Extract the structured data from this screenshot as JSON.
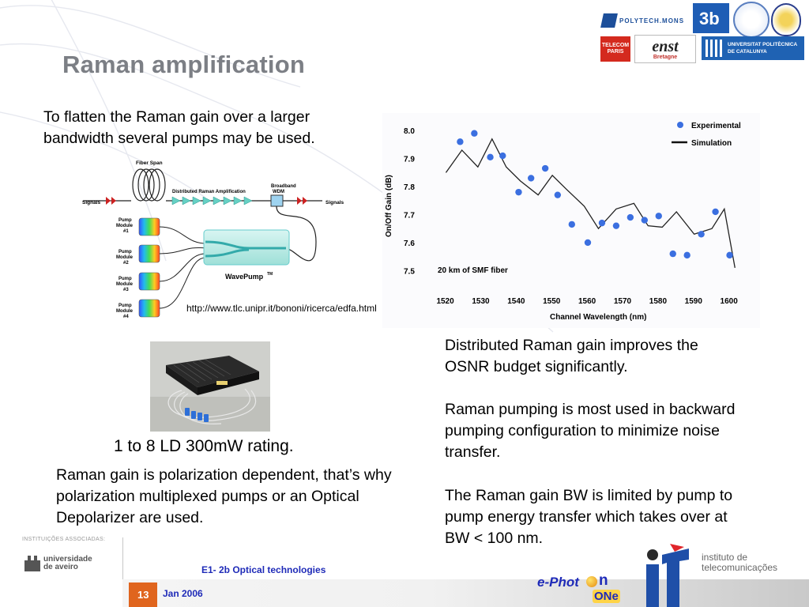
{
  "slide": {
    "title": "Raman amplification",
    "intro_text": "To flatten the Raman gain over a larger bandwidth several pumps may be used.",
    "url_caption": "http://www.tlc.unipr.it/bononi/ricerca/edfa.html",
    "photo_caption": "1 to 8 LD 300mW rating.",
    "polarization_text": "Raman gain is polarization dependent, that’s why polarization multiplexed pumps or an Optical Depolarizer are used.",
    "right_paragraphs": [
      "Distributed Raman gain improves the OSNR budget significantly.",
      "Raman pumping is most used in backward pumping configuration to minimize noise transfer.",
      "The Raman gain BW is limited by pump to pump energy transfer which takes over at BW < 100 nm."
    ]
  },
  "diagram": {
    "fiber_span": "Fiber Span",
    "distributed_amp": "Distributed Raman Amplification",
    "wdm_label_1": "Broadband",
    "wdm_label_2": "WDM",
    "signals_left": "Signals",
    "signals_right": "Signals",
    "wavepump": "WavePump",
    "wavepump_tm": "TM",
    "pump_word": "Pump",
    "module_word": "Module",
    "pump_modules": [
      "#1",
      "#2",
      "#3",
      "#4"
    ]
  },
  "logos": {
    "polytech": "POLYTECH.MONS",
    "upc": "UNIVERSITAT POLITÈCNICA DE CATALUNYA",
    "telecom": "TELECOM PARIS",
    "enst": "enst",
    "enst_sub": "Bretagne",
    "instituicoes": "INSTITUIÇÕES ASSOCIADAS:",
    "aveiro_1": "universidade",
    "aveiro_2": "de aveiro",
    "it_1": "instituto de",
    "it_2": "telecomunicações",
    "ephoton_1": "e-Phot",
    "ephoton_2": "n",
    "ephoton_3": "ONe"
  },
  "footer": {
    "course": "E1- 2b Optical technologies",
    "page_number": "13",
    "date": "Jan 2006"
  },
  "colors": {
    "title": "#7c7f85",
    "marker": "#3b6fe0",
    "accent_orange": "#e0651e",
    "footer_blue": "#1f2bb8"
  },
  "chart_data": {
    "type": "scatter",
    "xlabel": "Channel Wavelength (nm)",
    "ylabel": "On/Off Gain (dB)",
    "xlim": [
      1515,
      1605
    ],
    "ylim": [
      7.47,
      8.04
    ],
    "x_ticks": [
      1520,
      1530,
      1540,
      1550,
      1560,
      1570,
      1580,
      1590,
      1600
    ],
    "y_ticks": [
      "7.5",
      "7.6",
      "7.7",
      "7.8",
      "7.9",
      "8.0"
    ],
    "annotation": "20 km of SMF fiber",
    "legend_position": "top-right",
    "grid": false,
    "series": [
      {
        "name": "Experimental",
        "style": "markers",
        "x": [
          1524,
          1528,
          1532.5,
          1536,
          1540.5,
          1544,
          1548,
          1551.5,
          1555.5,
          1560,
          1564,
          1568,
          1572,
          1576,
          1580,
          1584,
          1588,
          1592,
          1596,
          1600
        ],
        "y": [
          7.96,
          7.99,
          7.905,
          7.91,
          7.78,
          7.83,
          7.865,
          7.77,
          7.665,
          7.6,
          7.67,
          7.66,
          7.69,
          7.68,
          7.695,
          7.56,
          7.555,
          7.63,
          7.71,
          7.555
        ]
      },
      {
        "name": "Simulation",
        "style": "line",
        "x": [
          1520,
          1524.5,
          1529,
          1533,
          1537,
          1541,
          1546,
          1550,
          1554,
          1559,
          1563,
          1568,
          1573,
          1577,
          1581,
          1585,
          1590,
          1595,
          1598.5,
          1601.5
        ],
        "y": [
          7.85,
          7.93,
          7.87,
          7.97,
          7.87,
          7.82,
          7.77,
          7.84,
          7.79,
          7.73,
          7.65,
          7.72,
          7.74,
          7.66,
          7.655,
          7.71,
          7.63,
          7.65,
          7.72,
          7.51
        ]
      }
    ]
  }
}
